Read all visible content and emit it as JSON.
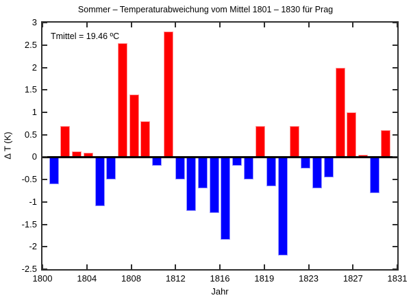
{
  "chart_data": {
    "type": "bar",
    "title": "Sommer – Temperaturabweichung vom Mittel 1801 – 1830 für Prag",
    "annotation": "Tmittel = 19.46 ºC",
    "xlabel": "Jahr",
    "ylabel": "Δ T (K)",
    "xlim": [
      1800,
      1831
    ],
    "ylim": [
      -2.5,
      3
    ],
    "grid": false,
    "legend": "none",
    "zero_line": true,
    "positive_color": "#ff0000",
    "negative_color": "#0000ff",
    "x_tick_labels": [
      "1800",
      "1804",
      "1808",
      "1812",
      "1816",
      "1819",
      "1823",
      "1827",
      "1831"
    ],
    "y_tick_labels": [
      "3",
      "2.5",
      "2",
      "1.5",
      "1",
      "0.5",
      "0",
      "-0.5",
      "-1",
      "-1.5",
      "-2",
      "-2.5"
    ],
    "y_ticks": [
      3,
      2.5,
      2,
      1.5,
      1,
      0.5,
      0,
      -0.5,
      -1,
      -1.5,
      -2,
      -2.5
    ],
    "categories": [
      1801,
      1802,
      1803,
      1804,
      1805,
      1806,
      1807,
      1808,
      1809,
      1810,
      1811,
      1812,
      1813,
      1814,
      1815,
      1816,
      1817,
      1818,
      1819,
      1820,
      1821,
      1822,
      1823,
      1824,
      1825,
      1826,
      1827,
      1828,
      1829,
      1830
    ],
    "values": [
      -0.6,
      0.7,
      0.13,
      0.1,
      -1.1,
      -0.5,
      2.55,
      1.4,
      0.8,
      -0.2,
      2.8,
      -0.5,
      -1.2,
      -0.7,
      -1.25,
      -1.85,
      -0.2,
      -0.5,
      0.7,
      -0.65,
      -2.2,
      0.7,
      -0.25,
      -0.7,
      -0.45,
      2.0,
      1.0,
      0.05,
      -0.8,
      0.6
    ]
  }
}
